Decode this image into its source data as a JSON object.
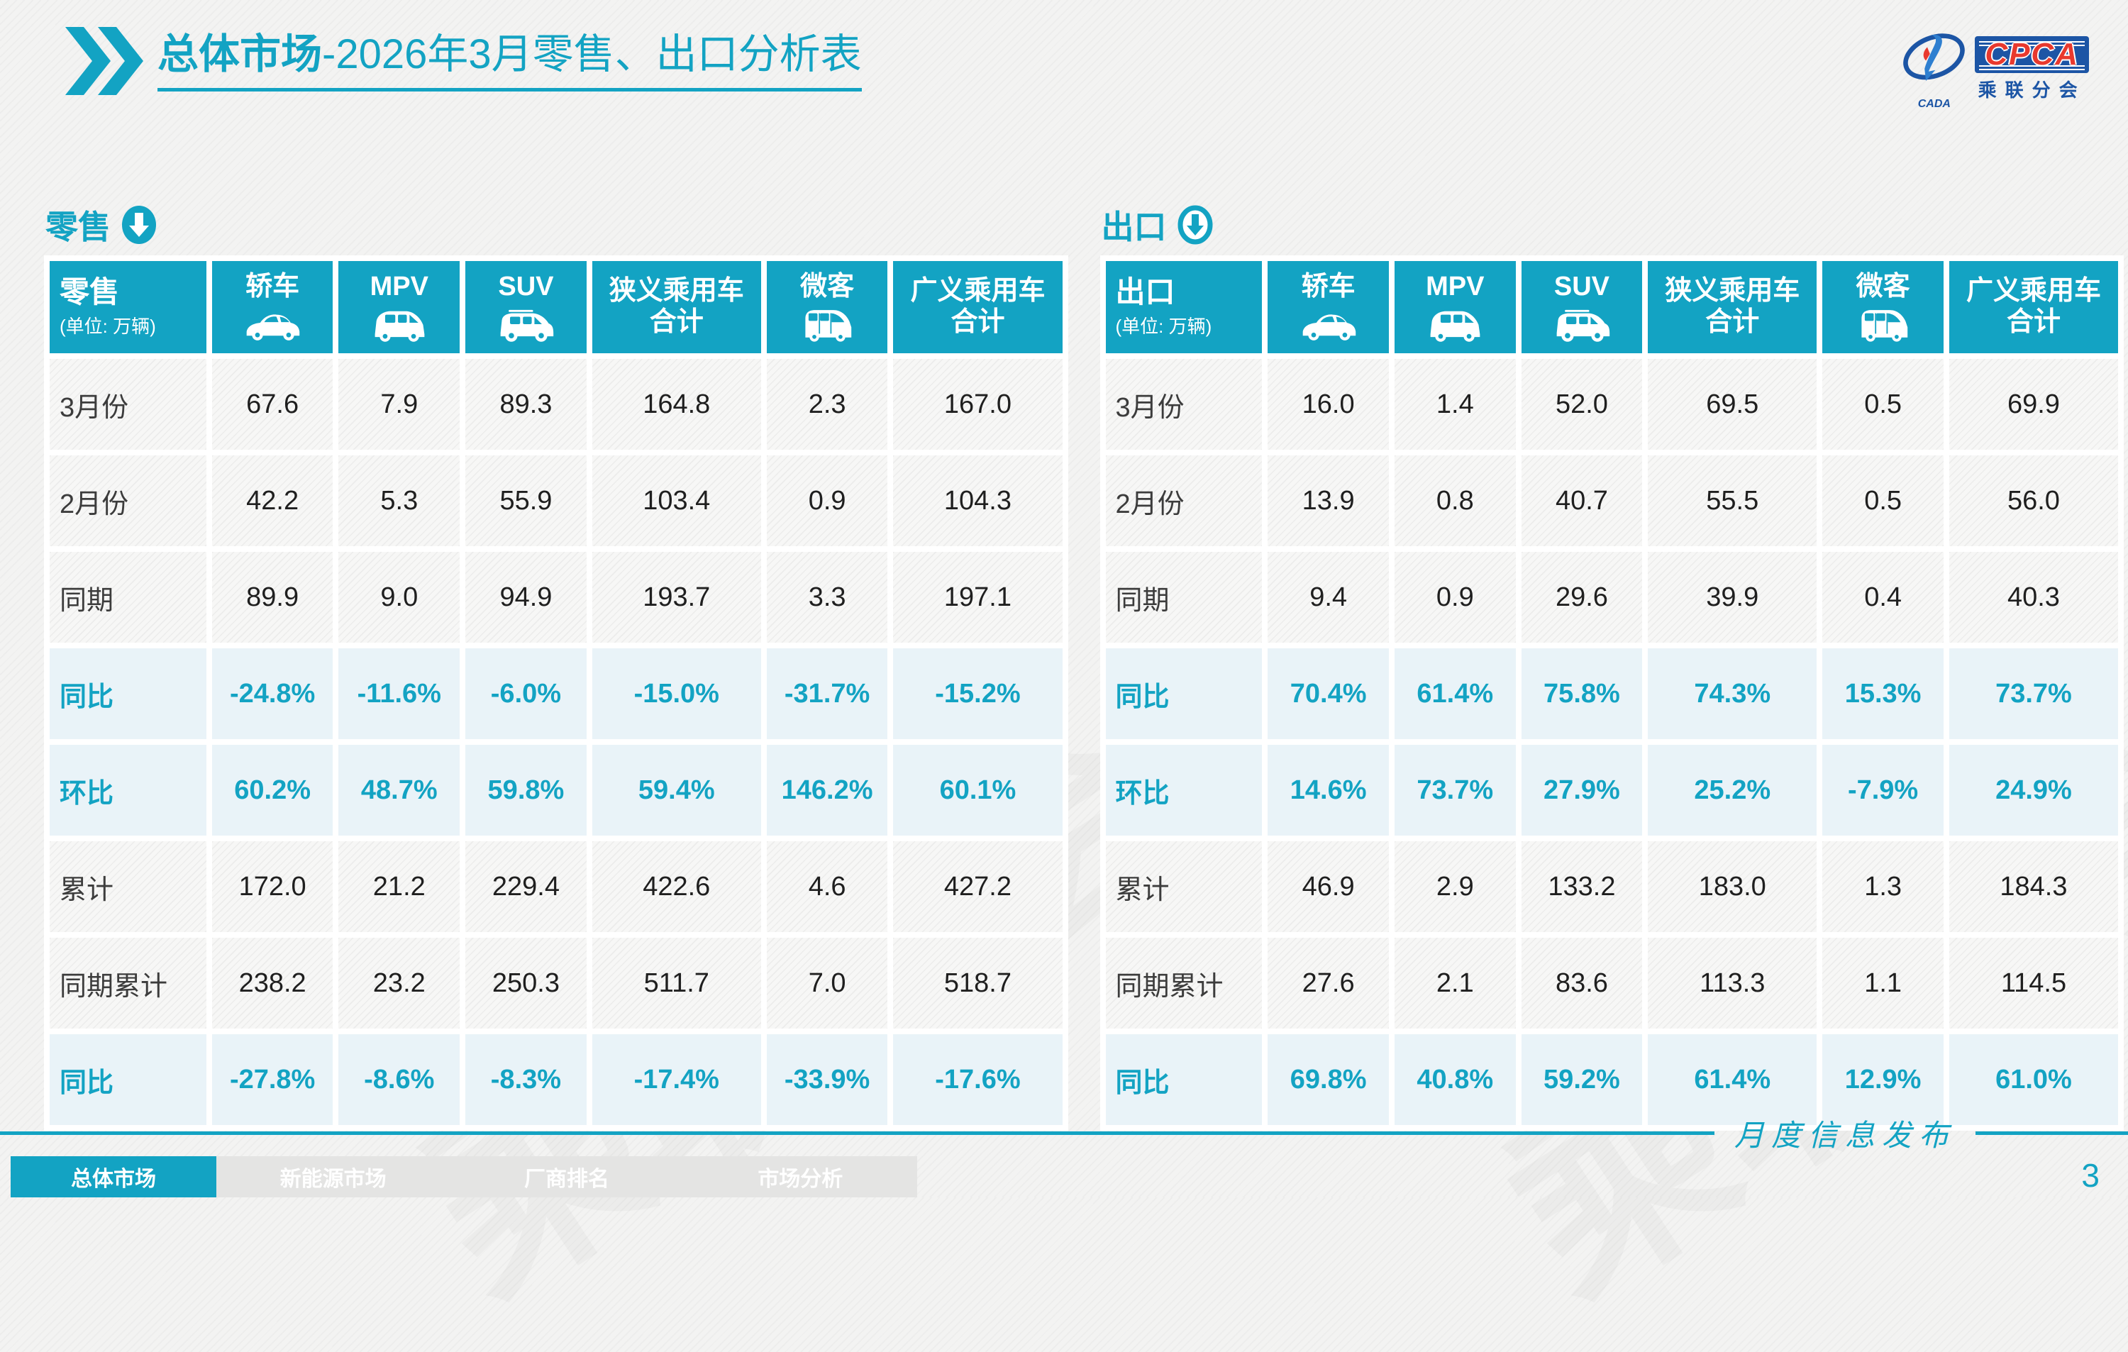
{
  "title": {
    "emphasis": "总体市场",
    "rest": "-2026年3月零售、出口分析表"
  },
  "logo": {
    "cpca": "CPCA",
    "subtitle": "乘联分会",
    "cada": "CADA"
  },
  "colors": {
    "accent": "#13a3c3",
    "highlight_bg": "#e9f3f8",
    "cpca_blue": "#1c55a5",
    "cpca_red": "#e8392e"
  },
  "watermark_text": "乘联分会",
  "tables": [
    {
      "section_title": "零售",
      "section_icon": "arrow-down-solid-icon",
      "corner_label": "零售",
      "unit": "(单位: 万辆)",
      "columns": [
        {
          "label": "轿车",
          "icon": "sedan-car-icon"
        },
        {
          "label": "MPV",
          "icon": "mpv-car-icon"
        },
        {
          "label": "SUV",
          "icon": "suv-car-icon"
        },
        {
          "label": "狭义乘用车",
          "label2": "合计"
        },
        {
          "label": "微客",
          "icon": "microvan-icon"
        },
        {
          "label": "广义乘用车",
          "label2": "合计"
        }
      ],
      "rows": [
        {
          "label": "3月份",
          "highlight": false,
          "values": [
            "67.6",
            "7.9",
            "89.3",
            "164.8",
            "2.3",
            "167.0"
          ]
        },
        {
          "label": "2月份",
          "highlight": false,
          "values": [
            "42.2",
            "5.3",
            "55.9",
            "103.4",
            "0.9",
            "104.3"
          ]
        },
        {
          "label": "同期",
          "highlight": false,
          "values": [
            "89.9",
            "9.0",
            "94.9",
            "193.7",
            "3.3",
            "197.1"
          ]
        },
        {
          "label": "同比",
          "highlight": true,
          "values": [
            "-24.8%",
            "-11.6%",
            "-6.0%",
            "-15.0%",
            "-31.7%",
            "-15.2%"
          ]
        },
        {
          "label": "环比",
          "highlight": true,
          "values": [
            "60.2%",
            "48.7%",
            "59.8%",
            "59.4%",
            "146.2%",
            "60.1%"
          ]
        },
        {
          "label": "累计",
          "highlight": false,
          "values": [
            "172.0",
            "21.2",
            "229.4",
            "422.6",
            "4.6",
            "427.2"
          ]
        },
        {
          "label": "同期累计",
          "highlight": false,
          "values": [
            "238.2",
            "23.2",
            "250.3",
            "511.7",
            "7.0",
            "518.7"
          ]
        },
        {
          "label": "同比",
          "highlight": true,
          "values": [
            "-27.8%",
            "-8.6%",
            "-8.3%",
            "-17.4%",
            "-33.9%",
            "-17.6%"
          ]
        }
      ]
    },
    {
      "section_title": "出口",
      "section_icon": "arrow-down-ring-icon",
      "corner_label": "出口",
      "unit": "(单位: 万辆)",
      "columns": [
        {
          "label": "轿车",
          "icon": "sedan-car-icon"
        },
        {
          "label": "MPV",
          "icon": "mpv-car-icon"
        },
        {
          "label": "SUV",
          "icon": "suv-car-icon"
        },
        {
          "label": "狭义乘用车",
          "label2": "合计"
        },
        {
          "label": "微客",
          "icon": "microvan-icon"
        },
        {
          "label": "广义乘用车",
          "label2": "合计"
        }
      ],
      "rows": [
        {
          "label": "3月份",
          "highlight": false,
          "values": [
            "16.0",
            "1.4",
            "52.0",
            "69.5",
            "0.5",
            "69.9"
          ]
        },
        {
          "label": "2月份",
          "highlight": false,
          "values": [
            "13.9",
            "0.8",
            "40.7",
            "55.5",
            "0.5",
            "56.0"
          ]
        },
        {
          "label": "同期",
          "highlight": false,
          "values": [
            "9.4",
            "0.9",
            "29.6",
            "39.9",
            "0.4",
            "40.3"
          ]
        },
        {
          "label": "同比",
          "highlight": true,
          "values": [
            "70.4%",
            "61.4%",
            "75.8%",
            "74.3%",
            "15.3%",
            "73.7%"
          ]
        },
        {
          "label": "环比",
          "highlight": true,
          "values": [
            "14.6%",
            "73.7%",
            "27.9%",
            "25.2%",
            "-7.9%",
            "24.9%"
          ]
        },
        {
          "label": "累计",
          "highlight": false,
          "values": [
            "46.9",
            "2.9",
            "133.2",
            "183.0",
            "1.3",
            "184.3"
          ]
        },
        {
          "label": "同期累计",
          "highlight": false,
          "values": [
            "27.6",
            "2.1",
            "83.6",
            "113.3",
            "1.1",
            "114.5"
          ]
        },
        {
          "label": "同比",
          "highlight": true,
          "values": [
            "69.8%",
            "40.8%",
            "59.2%",
            "61.4%",
            "12.9%",
            "61.0%"
          ]
        }
      ]
    }
  ],
  "footer": {
    "tabs": [
      {
        "label": "总体市场",
        "active": true
      },
      {
        "label": "新能源市场",
        "active": false
      },
      {
        "label": "厂商排名",
        "active": false
      },
      {
        "label": "市场分析",
        "active": false
      }
    ],
    "publication": "月度信息发布",
    "page_number": "3"
  }
}
